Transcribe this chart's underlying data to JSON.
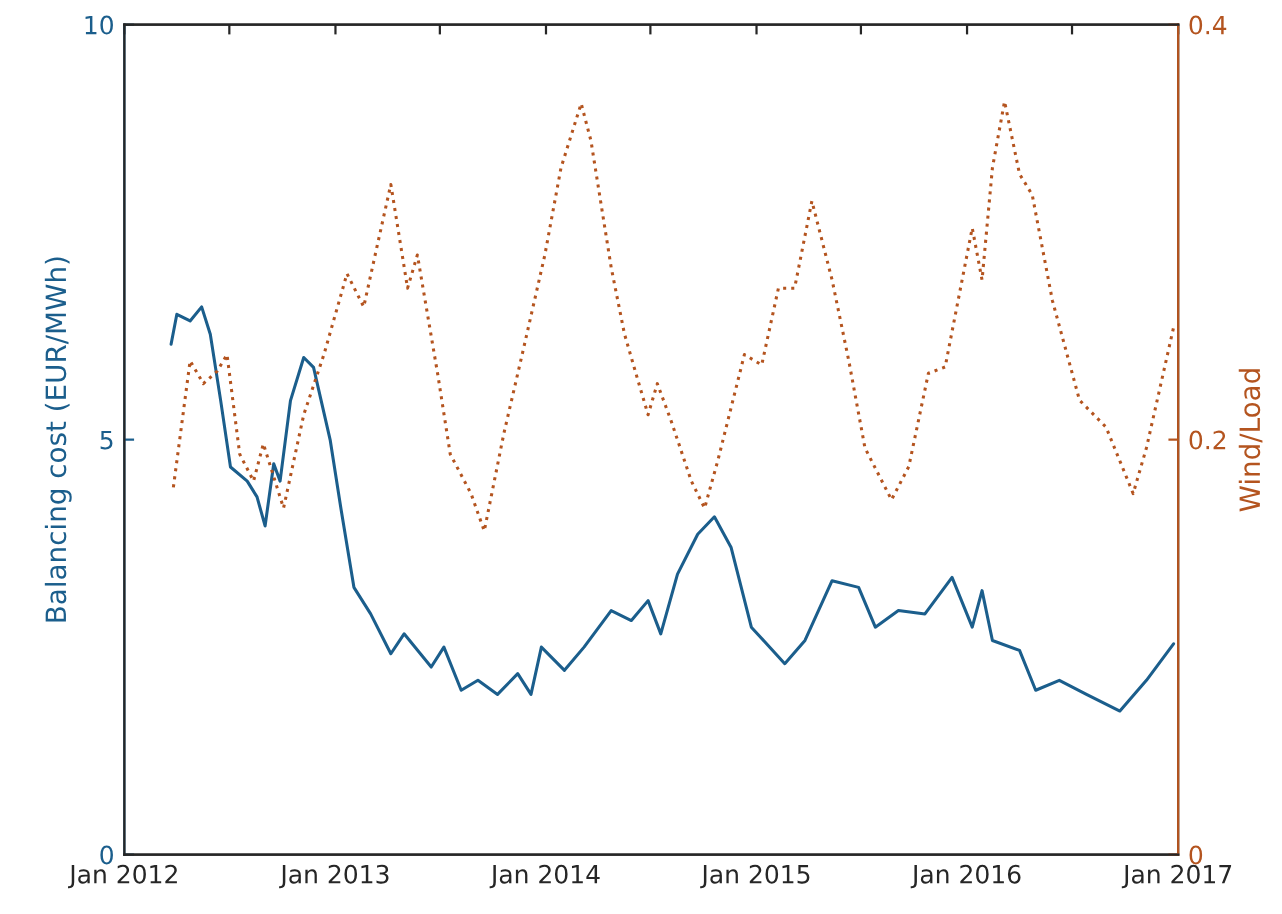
{
  "chart_data": {
    "type": "line",
    "ylabel": "Balancing cost (EUR/MWh)",
    "y2label": "Wind/Load",
    "xlim": [
      "2012-01-01",
      "2017-01-01"
    ],
    "xticks": [
      {
        "value": "2012-01-01",
        "label": "Jan 2012"
      },
      {
        "value": "2012-07-01",
        "label": null
      },
      {
        "value": "2013-01-01",
        "label": "Jan 2013"
      },
      {
        "value": "2013-07-01",
        "label": null
      },
      {
        "value": "2014-01-01",
        "label": "Jan 2014"
      },
      {
        "value": "2014-07-01",
        "label": null
      },
      {
        "value": "2015-01-01",
        "label": "Jan 2015"
      },
      {
        "value": "2015-07-01",
        "label": null
      },
      {
        "value": "2016-01-01",
        "label": "Jan 2016"
      },
      {
        "value": "2016-07-01",
        "label": null
      },
      {
        "value": "2017-01-01",
        "label": "Jan 2017"
      }
    ],
    "ylim": [
      0,
      10
    ],
    "yticks": [
      0,
      5,
      10
    ],
    "y2lim": [
      0,
      0.4
    ],
    "y2ticks": [
      0,
      0.2,
      0.4
    ],
    "grid": false,
    "legend": false,
    "series": [
      {
        "color": "#1b5e8c",
        "line_style": "solid",
        "x": [
          "2012-03-22",
          "2012-04-01",
          "2012-04-24",
          "2012-05-14",
          "2012-05-29",
          "2012-06-16",
          "2012-07-03",
          "2012-08-01",
          "2012-08-18",
          "2012-09-01",
          "2012-09-16",
          "2012-09-27",
          "2012-10-15",
          "2012-11-07",
          "2012-11-24",
          "2012-12-23",
          "2013-01-10",
          "2013-02-02",
          "2013-03-03",
          "2013-04-07",
          "2013-04-30",
          "2013-06-16",
          "2013-07-08",
          "2013-08-07",
          "2013-09-05",
          "2013-10-09",
          "2013-11-13",
          "2013-12-06",
          "2013-12-24",
          "2014-02-02",
          "2014-03-08",
          "2014-04-24",
          "2014-05-29",
          "2014-06-27",
          "2014-07-19",
          "2014-08-17",
          "2014-09-21",
          "2014-10-20",
          "2014-11-18",
          "2014-12-23",
          "2015-02-19",
          "2015-03-26",
          "2015-05-12",
          "2015-06-27",
          "2015-07-26",
          "2015-09-04",
          "2015-10-20",
          "2015-12-06",
          "2016-01-10",
          "2016-01-27",
          "2016-02-14",
          "2016-04-01",
          "2016-04-29",
          "2016-06-09",
          "2016-07-26",
          "2016-09-22",
          "2016-11-07",
          "2016-12-24"
        ],
        "values": [
          6.15,
          6.51,
          6.43,
          6.6,
          6.27,
          5.47,
          4.67,
          4.5,
          4.31,
          3.96,
          4.71,
          4.5,
          5.47,
          5.99,
          5.87,
          4.99,
          4.19,
          3.22,
          2.9,
          2.42,
          2.66,
          2.26,
          2.5,
          1.98,
          2.1,
          1.93,
          2.18,
          1.93,
          2.5,
          2.22,
          2.5,
          2.94,
          2.82,
          3.06,
          2.66,
          3.38,
          3.86,
          4.07,
          3.7,
          2.74,
          2.3,
          2.58,
          3.3,
          3.22,
          2.74,
          2.94,
          2.9,
          3.34,
          2.74,
          3.18,
          2.58,
          2.46,
          1.98,
          2.1,
          1.93,
          1.73,
          2.1,
          2.54
        ]
      },
      {
        "color": "#b4541f",
        "line_style": "dotted",
        "axis": "y2",
        "x": [
          "2012-03-26",
          "2012-04-24",
          "2012-05-17",
          "2012-06-10",
          "2012-06-27",
          "2012-07-19",
          "2012-08-12",
          "2012-08-29",
          "2012-10-03",
          "2012-11-07",
          "2012-12-12",
          "2013-01-21",
          "2013-02-19",
          "2013-03-14",
          "2013-04-07",
          "2013-05-06",
          "2013-05-23",
          "2013-06-27",
          "2013-07-19",
          "2013-08-24",
          "2013-09-16",
          "2013-10-20",
          "2013-11-24",
          "2013-12-30",
          "2014-01-27",
          "2014-03-03",
          "2014-03-20",
          "2014-04-24",
          "2014-05-17",
          "2014-06-10",
          "2014-06-27",
          "2014-07-13",
          "2014-08-06",
          "2014-09-10",
          "2014-10-03",
          "2014-10-26",
          "2014-12-11",
          "2015-01-10",
          "2015-02-08",
          "2015-03-08",
          "2015-04-07",
          "2015-05-12",
          "2015-06-10",
          "2015-07-08",
          "2015-08-23",
          "2015-09-22",
          "2015-10-26",
          "2015-11-24",
          "2016-01-10",
          "2016-01-27",
          "2016-02-14",
          "2016-03-06",
          "2016-04-01",
          "2016-04-23",
          "2016-05-28",
          "2016-07-14",
          "2016-08-29",
          "2016-10-15",
          "2016-11-07",
          "2016-12-24"
        ],
        "values": [
          0.177,
          0.238,
          0.227,
          0.233,
          0.241,
          0.193,
          0.18,
          0.198,
          0.167,
          0.212,
          0.241,
          0.28,
          0.264,
          0.293,
          0.323,
          0.273,
          0.289,
          0.232,
          0.193,
          0.174,
          0.156,
          0.203,
          0.245,
          0.289,
          0.331,
          0.362,
          0.344,
          0.283,
          0.251,
          0.228,
          0.212,
          0.227,
          0.209,
          0.18,
          0.167,
          0.19,
          0.241,
          0.236,
          0.273,
          0.273,
          0.315,
          0.277,
          0.238,
          0.196,
          0.171,
          0.187,
          0.232,
          0.235,
          0.302,
          0.277,
          0.331,
          0.363,
          0.328,
          0.318,
          0.267,
          0.219,
          0.206,
          0.174,
          0.196,
          0.254
        ]
      }
    ]
  }
}
